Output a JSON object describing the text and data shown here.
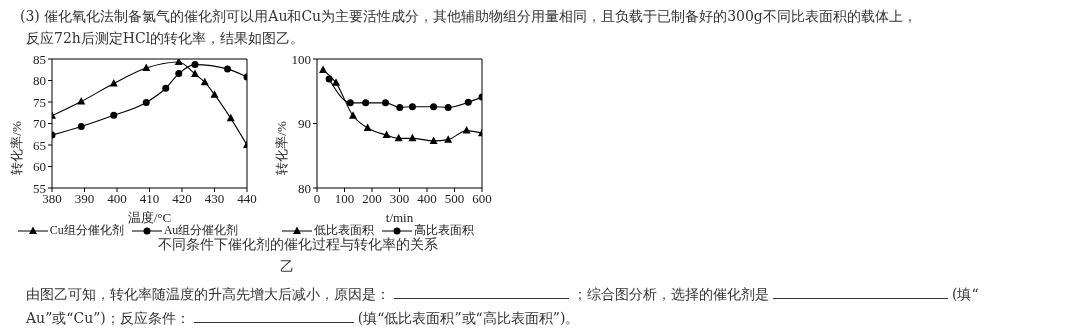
{
  "chart_data": [
    {
      "type": "line",
      "xlabel": "温度/°C",
      "ylabel": "转化率/%",
      "xlim": [
        380,
        440
      ],
      "xticks": [
        380,
        390,
        400,
        410,
        420,
        430,
        440
      ],
      "ylim": [
        55,
        85
      ],
      "yticks": [
        55,
        60,
        65,
        70,
        75,
        80,
        85
      ],
      "legend": "bottom",
      "line_style": "solid",
      "annotations": [
        "(3) 催化氧化法制备氯气的催化剂可以用Au和Cu为主要活性成分，其他辅助物组分用量相同，且负载于已制备好的300g不同比表面积的载体上，",
        "反应72h后测定HCl的转化率，结果如图乙。"
      ],
      "series": [
        {
          "name": "Cu组分催化剂",
          "color": "#000000",
          "marker": "triangle",
          "x": [
            380,
            389,
            399,
            409,
            419,
            424,
            427,
            430,
            435,
            440
          ],
          "values": [
            71.8,
            75.1,
            79.3,
            82.9,
            84.3,
            81.5,
            79.6,
            76.7,
            71.2,
            65.0
          ]
        },
        {
          "name": "Au组分催化剂",
          "color": "#000000",
          "marker": "circle",
          "x": [
            380,
            389,
            399,
            409,
            415,
            419,
            424,
            434,
            440
          ],
          "values": [
            67.3,
            69.3,
            71.9,
            74.9,
            78.2,
            81.6,
            83.7,
            82.7,
            80.8
          ]
        }
      ]
    },
    {
      "type": "line",
      "xlabel": "t/min",
      "ylabel": "转化率/%",
      "xlim": [
        0,
        600
      ],
      "xticks": [
        0,
        100,
        200,
        300,
        400,
        500,
        600
      ],
      "ylim": [
        80,
        100
      ],
      "yticks": [
        80,
        90,
        100
      ],
      "legend": "bottom",
      "line_style": "solid",
      "annotations": [
        "不同条件下催化剂的催化过程与转化率的关系",
        "乙",
        "由图乙可知，转化率随温度的升高先增大后减小，原因是：",
        "；综合图分析，选择的催化剂是",
        "(填“",
        "Au”或“Cu”)；反应条件：",
        "(填“低比表面积”或“高比表面积”)。"
      ],
      "series": [
        {
          "name": "低比表面积",
          "color": "#000000",
          "marker": "triangle",
          "x": [
            22,
            69,
            131,
            184,
            253,
            297,
            347,
            424,
            477,
            544,
            600
          ],
          "values": [
            98.3,
            96.3,
            91.2,
            89.3,
            88.2,
            87.7,
            87.7,
            87.3,
            87.5,
            88.9,
            88.5
          ]
        },
        {
          "name": "高比表面积",
          "color": "#000000",
          "marker": "circle",
          "x": [
            44,
            121,
            177,
            249,
            301,
            347,
            424,
            477,
            550,
            600
          ],
          "values": [
            96.9,
            93.2,
            93.2,
            93.2,
            92.5,
            92.6,
            92.6,
            92.5,
            93.3,
            94.1
          ]
        }
      ]
    }
  ]
}
